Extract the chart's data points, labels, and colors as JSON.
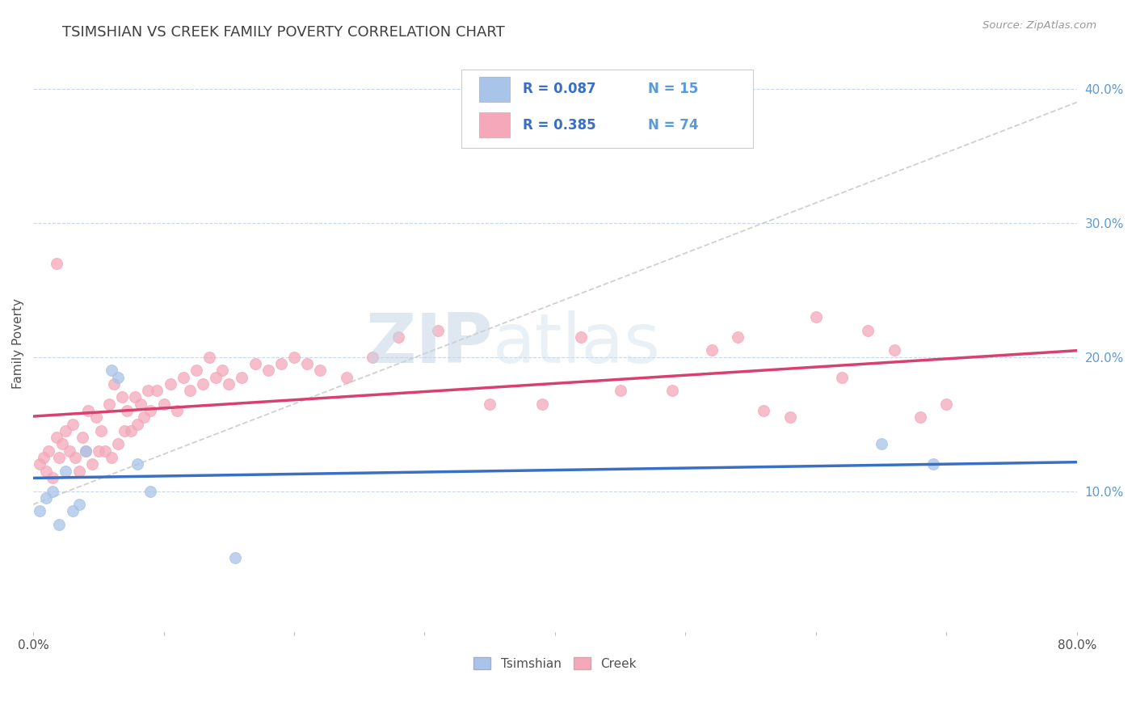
{
  "title": "TSIMSHIAN VS CREEK FAMILY POVERTY CORRELATION CHART",
  "source_text": "Source: ZipAtlas.com",
  "ylabel": "Family Poverty",
  "xlim": [
    0.0,
    0.8
  ],
  "ylim": [
    -0.005,
    0.425
  ],
  "y_ticks_right": [
    0.1,
    0.2,
    0.3,
    0.4
  ],
  "y_tick_labels_right": [
    "10.0%",
    "20.0%",
    "30.0%",
    "40.0%"
  ],
  "R_tsimshian": 0.087,
  "N_tsimshian": 15,
  "R_creek": 0.385,
  "N_creek": 74,
  "tsimshian_color": "#a8c4e8",
  "creek_color": "#f4a8ba",
  "tsimshian_line_color": "#3a70c4",
  "creek_line_color": "#d84070",
  "trend_line_color": "#c8c8c8",
  "background_color": "#ffffff",
  "grid_color": "#c8d8e8",
  "title_color": "#404040",
  "axis_label_color": "#505050",
  "right_tick_color": "#5b9bd5",
  "legend_R_color": "#3a6fc4",
  "legend_N_color": "#5b9bd5",
  "tsimshian_x": [
    0.005,
    0.01,
    0.015,
    0.02,
    0.025,
    0.03,
    0.035,
    0.04,
    0.06,
    0.065,
    0.08,
    0.09,
    0.155,
    0.65,
    0.69
  ],
  "tsimshian_y": [
    0.085,
    0.095,
    0.1,
    0.075,
    0.115,
    0.085,
    0.09,
    0.13,
    0.19,
    0.185,
    0.12,
    0.1,
    0.05,
    0.135,
    0.12
  ],
  "creek_x": [
    0.005,
    0.008,
    0.01,
    0.012,
    0.015,
    0.018,
    0.018,
    0.02,
    0.022,
    0.025,
    0.028,
    0.03,
    0.032,
    0.035,
    0.038,
    0.04,
    0.042,
    0.045,
    0.048,
    0.05,
    0.052,
    0.055,
    0.058,
    0.06,
    0.062,
    0.065,
    0.068,
    0.07,
    0.072,
    0.075,
    0.078,
    0.08,
    0.082,
    0.085,
    0.088,
    0.09,
    0.095,
    0.1,
    0.105,
    0.11,
    0.115,
    0.12,
    0.125,
    0.13,
    0.135,
    0.14,
    0.145,
    0.15,
    0.16,
    0.17,
    0.18,
    0.19,
    0.2,
    0.21,
    0.22,
    0.24,
    0.26,
    0.28,
    0.31,
    0.35,
    0.39,
    0.42,
    0.45,
    0.49,
    0.52,
    0.54,
    0.56,
    0.58,
    0.6,
    0.62,
    0.64,
    0.66,
    0.68,
    0.7
  ],
  "creek_y": [
    0.12,
    0.125,
    0.115,
    0.13,
    0.11,
    0.14,
    0.27,
    0.125,
    0.135,
    0.145,
    0.13,
    0.15,
    0.125,
    0.115,
    0.14,
    0.13,
    0.16,
    0.12,
    0.155,
    0.13,
    0.145,
    0.13,
    0.165,
    0.125,
    0.18,
    0.135,
    0.17,
    0.145,
    0.16,
    0.145,
    0.17,
    0.15,
    0.165,
    0.155,
    0.175,
    0.16,
    0.175,
    0.165,
    0.18,
    0.16,
    0.185,
    0.175,
    0.19,
    0.18,
    0.2,
    0.185,
    0.19,
    0.18,
    0.185,
    0.195,
    0.19,
    0.195,
    0.2,
    0.195,
    0.19,
    0.185,
    0.2,
    0.215,
    0.22,
    0.165,
    0.165,
    0.215,
    0.175,
    0.175,
    0.205,
    0.215,
    0.16,
    0.155,
    0.23,
    0.185,
    0.22,
    0.205,
    0.155,
    0.165
  ],
  "watermark_zip": "ZIP",
  "watermark_atlas": "atlas",
  "marker_size": 100,
  "marker_alpha": 0.75,
  "marker_lw": 0.8
}
